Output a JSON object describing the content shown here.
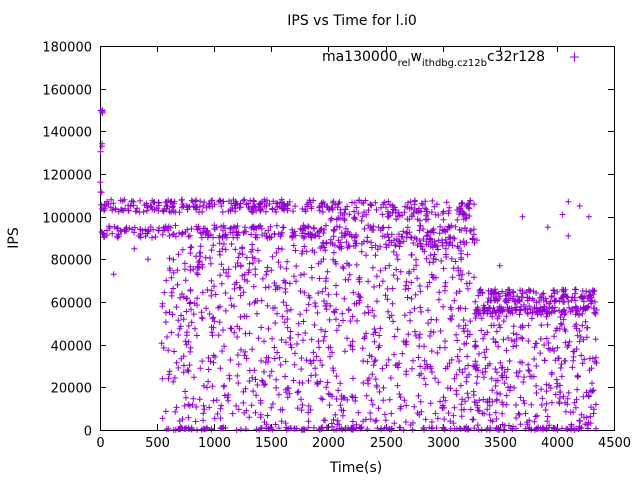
{
  "chart_data": {
    "type": "scatter",
    "title": "IPS vs Time for l.i0",
    "xlabel": "Time(s)",
    "ylabel": "IPS",
    "xlim": [
      0,
      4500
    ],
    "ylim": [
      0,
      180000
    ],
    "xticks": [
      0,
      500,
      1000,
      1500,
      2000,
      2500,
      3000,
      3500,
      4000,
      4500
    ],
    "yticks": [
      0,
      20000,
      40000,
      60000,
      80000,
      100000,
      120000,
      140000,
      160000,
      180000
    ],
    "grid": false,
    "legend_position": "top-right",
    "marker": "plus",
    "series": [
      {
        "name": "ma130000",
        "name_sub1": "rel",
        "name_mid": "w",
        "name_sub2": "ithdbg.cz12b",
        "name_sub3": "c",
        "name_tail": "32r128",
        "color": "#9400d3",
        "bands": [
          {
            "x": [
              0,
              30
            ],
            "y": [
              148000,
              150000
            ],
            "n": 6
          },
          {
            "x": [
              0,
              20
            ],
            "y": [
              95000,
              140000
            ],
            "n": 8
          },
          {
            "x": [
              10,
              2000
            ],
            "y": [
              102000,
              108000
            ],
            "n": 220
          },
          {
            "x": [
              10,
              2000
            ],
            "y": [
              90000,
              96000
            ],
            "n": 200
          },
          {
            "x": [
              2000,
              3280
            ],
            "y": [
              98000,
              108000
            ],
            "n": 150
          },
          {
            "x": [
              2000,
              3280
            ],
            "y": [
              86000,
              96000
            ],
            "n": 150
          },
          {
            "x": [
              3280,
              4350
            ],
            "y": [
              60000,
              66000
            ],
            "n": 140
          },
          {
            "x": [
              3280,
              4350
            ],
            "y": [
              54000,
              58000
            ],
            "n": 120
          },
          {
            "x": [
              540,
              3280
            ],
            "y": [
              0,
              88000
            ],
            "n": 900
          },
          {
            "x": [
              3280,
              4350
            ],
            "y": [
              0,
              60000
            ],
            "n": 320
          },
          {
            "x": [
              560,
              4350
            ],
            "y": [
              0,
              1200
            ],
            "n": 160
          }
        ],
        "extra_points": [
          [
            120,
            73000
          ],
          [
            300,
            85000
          ],
          [
            420,
            80000
          ],
          [
            3500,
            77000
          ],
          [
            3700,
            100000
          ],
          [
            4050,
            101000
          ],
          [
            4100,
            107000
          ],
          [
            4100,
            91000
          ],
          [
            4200,
            105000
          ],
          [
            3920,
            95000
          ],
          [
            4280,
            100000
          ],
          [
            3300,
            89000
          ]
        ]
      }
    ]
  }
}
